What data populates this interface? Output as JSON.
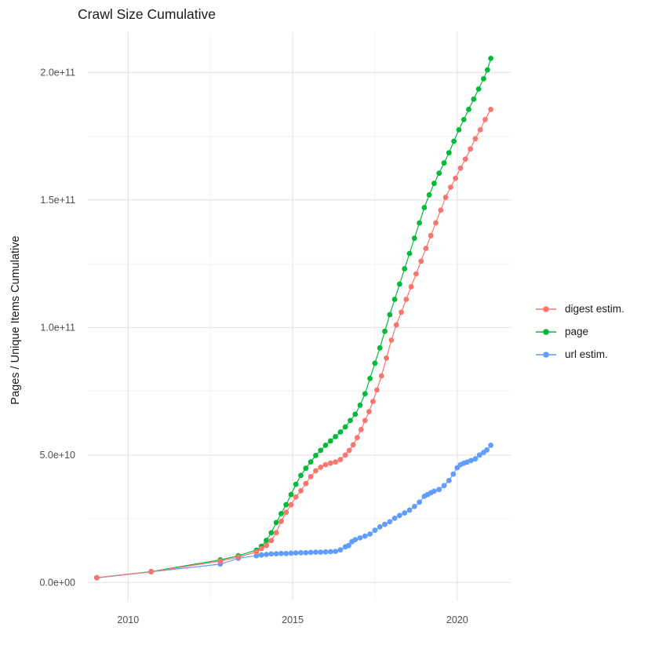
{
  "title": "Crawl Size Cumulative",
  "y_axis": {
    "title": "Pages / Unique Items Cumulative",
    "ticks": [
      {
        "label": "0.0e+00",
        "value": 0
      },
      {
        "label": "5.0e+10",
        "value": 50000000000.0
      },
      {
        "label": "1.0e+11",
        "value": 100000000000.0
      },
      {
        "label": "1.5e+11",
        "value": 150000000000.0
      },
      {
        "label": "2.0e+11",
        "value": 200000000000.0
      }
    ],
    "minor": [
      25000000000.0,
      75000000000.0,
      125000000000.0,
      175000000000.0
    ]
  },
  "x_axis": {
    "ticks": [
      {
        "label": "2010",
        "value": 2010
      },
      {
        "label": "2015",
        "value": 2015
      },
      {
        "label": "2020",
        "value": 2020
      }
    ],
    "minor": [
      2012.5,
      2017.5
    ]
  },
  "legend": {
    "items": [
      {
        "label": "digest estim.",
        "color": "#F8766D"
      },
      {
        "label": "page",
        "color": "#00BA38"
      },
      {
        "label": "url estim.",
        "color": "#619CFF"
      }
    ]
  },
  "colors": {
    "grid_major": "#E3E3E3",
    "grid_minor": "#F0F0F0",
    "axis_text": "#4D4D4D",
    "text": "#1a1a1a"
  },
  "chart_data": {
    "type": "scatter",
    "title": "Crawl Size Cumulative",
    "xlabel": "",
    "ylabel": "Pages / Unique Items Cumulative",
    "x_unit": "year (decimal)",
    "y_unit": "pages / unique items (count)",
    "xlim": [
      2008.8,
      2021.7
    ],
    "ylim": [
      0,
      215000000000.0
    ],
    "grid": true,
    "legend_position": "right",
    "marker": "point",
    "line": true,
    "draw_order": [
      "page",
      "url estim.",
      "digest estim."
    ],
    "series": [
      {
        "name": "digest estim.",
        "color": "#F8766D",
        "points": [
          [
            2009.05,
            1900000000.0
          ],
          [
            2010.7,
            4200000000.0
          ],
          [
            2012.8,
            8400000000.0
          ],
          [
            2013.35,
            10000000000.0
          ],
          [
            2013.9,
            12000000000.0
          ],
          [
            2014.05,
            13300000000.0
          ],
          [
            2014.2,
            14500000000.0
          ],
          [
            2014.35,
            16500000000.0
          ],
          [
            2014.5,
            19500000000.0
          ],
          [
            2014.65,
            24000000000.0
          ],
          [
            2014.8,
            27500000000.0
          ],
          [
            2014.95,
            30500000000.0
          ],
          [
            2015.1,
            33500000000.0
          ],
          [
            2015.25,
            36000000000.0
          ],
          [
            2015.4,
            38800000000.0
          ],
          [
            2015.55,
            41500000000.0
          ],
          [
            2015.7,
            43800000000.0
          ],
          [
            2015.85,
            45200000000.0
          ],
          [
            2016.0,
            46200000000.0
          ],
          [
            2016.15,
            46800000000.0
          ],
          [
            2016.3,
            47300000000.0
          ],
          [
            2016.45,
            48200000000.0
          ],
          [
            2016.6,
            50000000000.0
          ],
          [
            2016.72,
            51800000000.0
          ],
          [
            2016.84,
            54000000000.0
          ],
          [
            2016.96,
            56800000000.0
          ],
          [
            2017.08,
            60000000000.0
          ],
          [
            2017.2,
            63500000000.0
          ],
          [
            2017.32,
            67000000000.0
          ],
          [
            2017.44,
            71000000000.0
          ],
          [
            2017.56,
            75500000000.0
          ],
          [
            2017.7,
            81000000000.0
          ],
          [
            2017.85,
            88000000000.0
          ],
          [
            2018.0,
            95000000000.0
          ],
          [
            2018.15,
            101000000000.0
          ],
          [
            2018.3,
            106000000000.0
          ],
          [
            2018.45,
            111000000000.0
          ],
          [
            2018.6,
            116000000000.0
          ],
          [
            2018.75,
            121000000000.0
          ],
          [
            2018.9,
            126000000000.0
          ],
          [
            2019.05,
            131000000000.0
          ],
          [
            2019.2,
            136000000000.0
          ],
          [
            2019.35,
            141000000000.0
          ],
          [
            2019.5,
            146000000000.0
          ],
          [
            2019.65,
            151000000000.0
          ],
          [
            2019.8,
            155000000000.0
          ],
          [
            2019.95,
            158500000000.0
          ],
          [
            2020.1,
            162500000000.0
          ],
          [
            2020.25,
            166000000000.0
          ],
          [
            2020.4,
            170000000000.0
          ],
          [
            2020.55,
            174000000000.0
          ],
          [
            2020.7,
            177500000000.0
          ],
          [
            2020.85,
            181500000000.0
          ],
          [
            2021.02,
            185500000000.0
          ]
        ]
      },
      {
        "name": "page",
        "color": "#00BA38",
        "points": [
          [
            2009.05,
            1900000000.0
          ],
          [
            2010.7,
            4300000000.0
          ],
          [
            2012.8,
            8900000000.0
          ],
          [
            2013.35,
            10500000000.0
          ],
          [
            2013.9,
            12700000000.0
          ],
          [
            2014.05,
            14200000000.0
          ],
          [
            2014.2,
            16500000000.0
          ],
          [
            2014.35,
            19500000000.0
          ],
          [
            2014.5,
            23500000000.0
          ],
          [
            2014.65,
            27000000000.0
          ],
          [
            2014.8,
            30500000000.0
          ],
          [
            2014.95,
            34500000000.0
          ],
          [
            2015.1,
            38500000000.0
          ],
          [
            2015.25,
            42000000000.0
          ],
          [
            2015.4,
            44800000000.0
          ],
          [
            2015.55,
            47300000000.0
          ],
          [
            2015.7,
            49800000000.0
          ],
          [
            2015.85,
            51800000000.0
          ],
          [
            2016.0,
            53800000000.0
          ],
          [
            2016.15,
            55500000000.0
          ],
          [
            2016.3,
            57200000000.0
          ],
          [
            2016.45,
            59000000000.0
          ],
          [
            2016.6,
            61000000000.0
          ],
          [
            2016.75,
            63500000000.0
          ],
          [
            2016.9,
            66000000000.0
          ],
          [
            2017.05,
            69500000000.0
          ],
          [
            2017.2,
            74000000000.0
          ],
          [
            2017.35,
            80000000000.0
          ],
          [
            2017.5,
            86000000000.0
          ],
          [
            2017.65,
            92000000000.0
          ],
          [
            2017.8,
            98500000000.0
          ],
          [
            2017.95,
            105000000000.0
          ],
          [
            2018.1,
            111000000000.0
          ],
          [
            2018.25,
            117000000000.0
          ],
          [
            2018.4,
            123000000000.0
          ],
          [
            2018.55,
            129000000000.0
          ],
          [
            2018.7,
            135000000000.0
          ],
          [
            2018.85,
            141000000000.0
          ],
          [
            2019.0,
            147000000000.0
          ],
          [
            2019.15,
            152000000000.0
          ],
          [
            2019.3,
            156500000000.0
          ],
          [
            2019.45,
            160500000000.0
          ],
          [
            2019.6,
            164500000000.0
          ],
          [
            2019.75,
            168500000000.0
          ],
          [
            2019.9,
            173000000000.0
          ],
          [
            2020.05,
            177500000000.0
          ],
          [
            2020.2,
            181500000000.0
          ],
          [
            2020.35,
            185500000000.0
          ],
          [
            2020.5,
            189500000000.0
          ],
          [
            2020.65,
            193500000000.0
          ],
          [
            2020.8,
            197500000000.0
          ],
          [
            2020.92,
            201000000000.0
          ],
          [
            2021.02,
            205500000000.0
          ]
        ]
      },
      {
        "name": "url estim.",
        "color": "#619CFF",
        "points": [
          [
            2009.05,
            1800000000.0
          ],
          [
            2010.7,
            4200000000.0
          ],
          [
            2012.8,
            7200000000.0
          ],
          [
            2013.35,
            9500000000.0
          ],
          [
            2013.9,
            10500000000.0
          ],
          [
            2014.05,
            10800000000.0
          ],
          [
            2014.2,
            11000000000.0
          ],
          [
            2014.35,
            11200000000.0
          ],
          [
            2014.5,
            11300000000.0
          ],
          [
            2014.65,
            11400000000.0
          ],
          [
            2014.8,
            11400000000.0
          ],
          [
            2014.95,
            11500000000.0
          ],
          [
            2015.1,
            11600000000.0
          ],
          [
            2015.25,
            11700000000.0
          ],
          [
            2015.4,
            11700000000.0
          ],
          [
            2015.55,
            11800000000.0
          ],
          [
            2015.7,
            11900000000.0
          ],
          [
            2015.85,
            11900000000.0
          ],
          [
            2016.0,
            12000000000.0
          ],
          [
            2016.15,
            12100000000.0
          ],
          [
            2016.3,
            12200000000.0
          ],
          [
            2016.45,
            12800000000.0
          ],
          [
            2016.6,
            14000000000.0
          ],
          [
            2016.7,
            14500000000.0
          ],
          [
            2016.8,
            16000000000.0
          ],
          [
            2016.9,
            16800000000.0
          ],
          [
            2017.05,
            17500000000.0
          ],
          [
            2017.2,
            18200000000.0
          ],
          [
            2017.35,
            19000000000.0
          ],
          [
            2017.5,
            20500000000.0
          ],
          [
            2017.65,
            21800000000.0
          ],
          [
            2017.8,
            22800000000.0
          ],
          [
            2017.95,
            23800000000.0
          ],
          [
            2018.1,
            25200000000.0
          ],
          [
            2018.25,
            26300000000.0
          ],
          [
            2018.4,
            27300000000.0
          ],
          [
            2018.55,
            28400000000.0
          ],
          [
            2018.7,
            29800000000.0
          ],
          [
            2018.85,
            31500000000.0
          ],
          [
            2019.0,
            33800000000.0
          ],
          [
            2019.1,
            34500000000.0
          ],
          [
            2019.2,
            35200000000.0
          ],
          [
            2019.3,
            35800000000.0
          ],
          [
            2019.45,
            36500000000.0
          ],
          [
            2019.6,
            38000000000.0
          ],
          [
            2019.75,
            40000000000.0
          ],
          [
            2019.88,
            42500000000.0
          ],
          [
            2020.0,
            45000000000.0
          ],
          [
            2020.1,
            46200000000.0
          ],
          [
            2020.2,
            46800000000.0
          ],
          [
            2020.3,
            47200000000.0
          ],
          [
            2020.42,
            47800000000.0
          ],
          [
            2020.55,
            48500000000.0
          ],
          [
            2020.68,
            50000000000.0
          ],
          [
            2020.8,
            51000000000.0
          ],
          [
            2020.9,
            52000000000.0
          ],
          [
            2021.02,
            53800000000.0
          ]
        ]
      }
    ]
  }
}
